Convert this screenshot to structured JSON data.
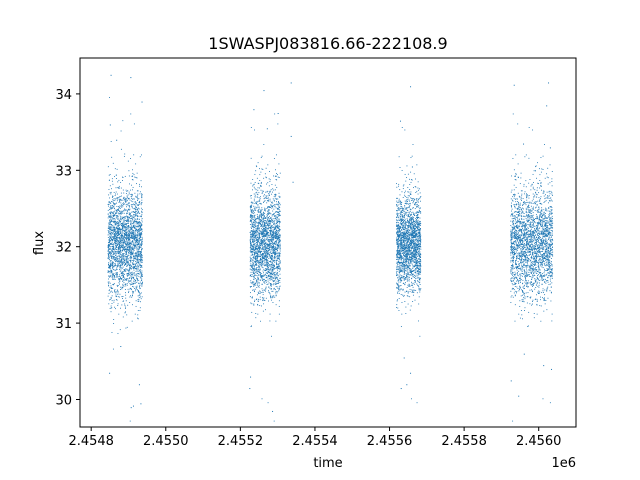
{
  "chart_data": {
    "type": "scatter",
    "title": "1SWASPJ083816.66-222108.9",
    "xlabel": "time",
    "ylabel": "flux",
    "x_offset_label": "1e6",
    "xlim": [
      2.45477,
      2.4561
    ],
    "ylim": [
      29.64,
      34.47
    ],
    "x_ticks": [
      2.4548,
      2.455,
      2.4552,
      2.4554,
      2.4556,
      2.4558,
      2.456
    ],
    "x_tick_labels": [
      "2.4548",
      "2.4550",
      "2.4552",
      "2.4554",
      "2.4556",
      "2.4558",
      "2.4560"
    ],
    "y_ticks": [
      30,
      31,
      32,
      33,
      34
    ],
    "y_tick_labels": [
      "30",
      "31",
      "32",
      "33",
      "34"
    ],
    "grid": false,
    "legend": "none",
    "series": [
      {
        "color": "#1f77b4",
        "marker_size": 1,
        "seasons": [
          {
            "x_start": 2.454845,
            "x_end": 2.454935,
            "center": 32.05,
            "spread": 0.35,
            "points": 2400
          },
          {
            "x_start": 2.455226,
            "x_end": 2.455305,
            "center": 32.05,
            "spread": 0.35,
            "points": 2200
          },
          {
            "x_start": 2.455618,
            "x_end": 2.455682,
            "center": 32.05,
            "spread": 0.3,
            "points": 2000
          },
          {
            "x_start": 2.455925,
            "x_end": 2.456035,
            "center": 32.05,
            "spread": 0.35,
            "points": 2400
          }
        ],
        "outliers": [
          [
            2.454848,
            30.35
          ],
          [
            2.454852,
            34.25
          ],
          [
            2.45485,
            33.6
          ],
          [
            2.454905,
            34.22
          ],
          [
            2.454906,
            29.9
          ],
          [
            2.454912,
            29.92
          ],
          [
            2.454928,
            30.2
          ],
          [
            2.454935,
            33.9
          ],
          [
            2.454932,
            29.95
          ],
          [
            2.454878,
            30.7
          ],
          [
            2.454867,
            33.4
          ],
          [
            2.455224,
            30.15
          ],
          [
            2.455226,
            30.3
          ],
          [
            2.455235,
            33.8
          ],
          [
            2.455262,
            34.05
          ],
          [
            2.455285,
            29.85
          ],
          [
            2.4553,
            33.75
          ],
          [
            2.455335,
            34.15
          ],
          [
            2.455335,
            33.45
          ],
          [
            2.45534,
            32.85
          ],
          [
            2.455271,
            33.55
          ],
          [
            2.455628,
            33.65
          ],
          [
            2.45563,
            30.15
          ],
          [
            2.455645,
            30.2
          ],
          [
            2.455655,
            34.1
          ],
          [
            2.455655,
            30.35
          ],
          [
            2.455638,
            30.55
          ],
          [
            2.45566,
            33.05
          ],
          [
            2.455925,
            30.25
          ],
          [
            2.455933,
            34.12
          ],
          [
            2.455945,
            30.05
          ],
          [
            2.455958,
            33.35
          ],
          [
            2.45596,
            30.6
          ],
          [
            2.45599,
            33.0
          ],
          [
            2.456012,
            30.45
          ],
          [
            2.45602,
            33.85
          ],
          [
            2.456025,
            34.15
          ],
          [
            2.456033,
            30.4
          ],
          [
            2.45603,
            33.3
          ]
        ]
      }
    ]
  }
}
